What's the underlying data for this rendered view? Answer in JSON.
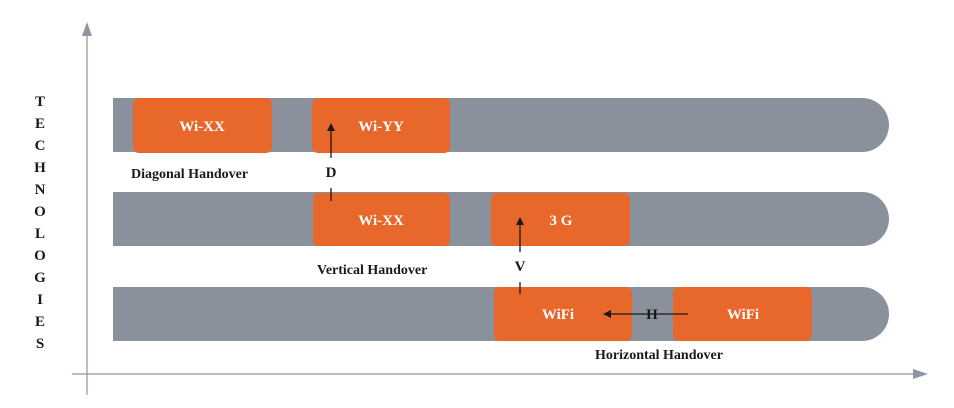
{
  "y_axis_label_letters": [
    "T",
    "E",
    "C",
    "H",
    "N",
    "O",
    "L",
    "O",
    "G",
    "I",
    "E",
    "S"
  ],
  "colors": {
    "lane": "#8a919c",
    "box": "#e8672a",
    "box_text": "#ffffff",
    "axis": "#8e97a4",
    "text": "#1a1a1a"
  },
  "lanes": {
    "top": {
      "boxes": {
        "left": "Wi-XX",
        "right": "Wi-YY"
      },
      "caption": "Diagonal Handover",
      "arrow_label": "D"
    },
    "middle": {
      "boxes": {
        "left": "Wi-XX",
        "right": "3 G"
      },
      "caption": "Vertical Handover",
      "arrow_label": "V"
    },
    "bottom": {
      "boxes": {
        "left": "WiFi",
        "right": "WiFi"
      },
      "caption": "Horizontal Handover",
      "arrow_label": "H"
    }
  }
}
